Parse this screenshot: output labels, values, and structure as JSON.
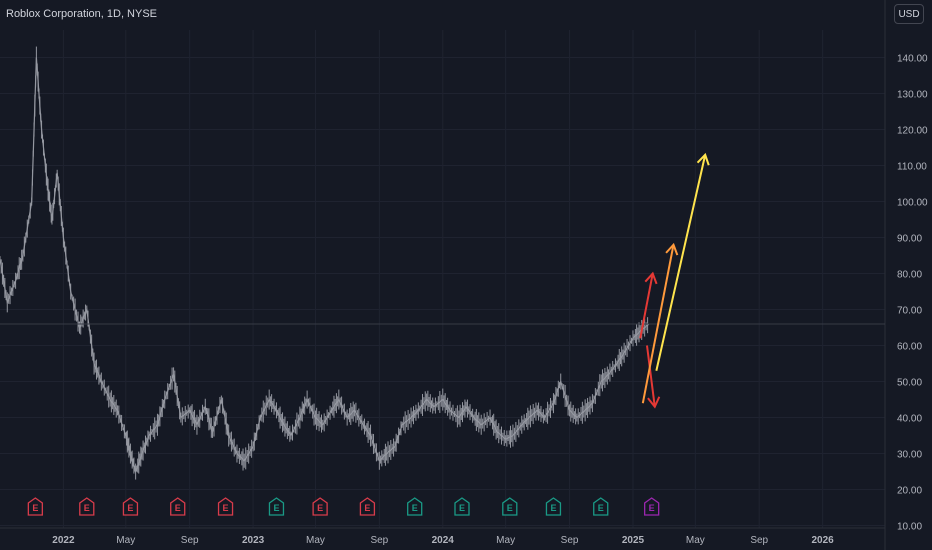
{
  "header": {
    "title": "Roblox Corporation, 1D, NYSE",
    "currency": "USD"
  },
  "colors": {
    "background": "#151924",
    "candles": "#9598a1",
    "grid": "#1f2330",
    "axis_text": "#b2b5be",
    "earnings_past": "#d83c4b",
    "earnings_future": "#1a9a86",
    "earnings_upcoming": "#9c27b0",
    "arrow_red": "#e53935",
    "arrow_orange": "#ff9a3c",
    "arrow_yellow": "#ffe44d"
  },
  "chart_data": {
    "type": "line",
    "title": "Roblox Corporation, 1D, NYSE",
    "xlabel": "",
    "ylabel": "",
    "ylim": [
      10,
      150
    ],
    "xlim": [
      "2021-09-01",
      "2026-05-01"
    ],
    "y_ticks": [
      "10.00",
      "20.00",
      "30.00",
      "40.00",
      "50.00",
      "60.00",
      "70.00",
      "80.00",
      "90.00",
      "100.00",
      "110.00",
      "120.00",
      "130.00",
      "140.00"
    ],
    "x_ticks": [
      {
        "label": "2022",
        "date": "2022-01-01"
      },
      {
        "label": "May",
        "date": "2022-05-01"
      },
      {
        "label": "Sep",
        "date": "2022-09-01"
      },
      {
        "label": "2023",
        "date": "2023-01-01"
      },
      {
        "label": "May",
        "date": "2023-05-01"
      },
      {
        "label": "Sep",
        "date": "2023-09-01"
      },
      {
        "label": "2024",
        "date": "2024-01-01"
      },
      {
        "label": "May",
        "date": "2024-05-01"
      },
      {
        "label": "Sep",
        "date": "2024-09-01"
      },
      {
        "label": "2025",
        "date": "2025-01-01"
      },
      {
        "label": "May",
        "date": "2025-05-01"
      },
      {
        "label": "Sep",
        "date": "2025-09-01"
      },
      {
        "label": "2026",
        "date": "2026-01-01"
      }
    ],
    "series": [
      {
        "x": [
          "2021-09-01",
          "2021-09-15",
          "2021-10-01",
          "2021-10-15",
          "2021-11-01",
          "2021-11-10",
          "2021-11-20",
          "2021-12-01",
          "2021-12-10",
          "2021-12-20",
          "2022-01-01",
          "2022-01-15",
          "2022-02-01",
          "2022-02-15",
          "2022-03-01",
          "2022-03-15",
          "2022-04-01",
          "2022-04-15",
          "2022-05-01",
          "2022-05-10",
          "2022-05-20",
          "2022-06-01",
          "2022-06-15",
          "2022-07-01",
          "2022-07-15",
          "2022-08-01",
          "2022-08-15",
          "2022-09-01",
          "2022-09-15",
          "2022-10-01",
          "2022-10-15",
          "2022-11-01",
          "2022-11-15",
          "2022-12-01",
          "2022-12-15",
          "2023-01-01",
          "2023-01-15",
          "2023-02-01",
          "2023-02-15",
          "2023-03-01",
          "2023-03-15",
          "2023-04-01",
          "2023-04-15",
          "2023-05-01",
          "2023-05-15",
          "2023-06-01",
          "2023-06-15",
          "2023-07-01",
          "2023-07-15",
          "2023-08-01",
          "2023-08-15",
          "2023-09-01",
          "2023-09-15",
          "2023-10-01",
          "2023-10-15",
          "2023-11-01",
          "2023-11-15",
          "2023-12-01",
          "2023-12-15",
          "2024-01-01",
          "2024-01-15",
          "2024-02-01",
          "2024-02-15",
          "2024-03-01",
          "2024-03-15",
          "2024-04-01",
          "2024-04-15",
          "2024-05-01",
          "2024-05-15",
          "2024-06-01",
          "2024-06-15",
          "2024-07-01",
          "2024-07-15",
          "2024-08-01",
          "2024-08-15",
          "2024-09-01",
          "2024-09-15",
          "2024-10-01",
          "2024-10-15",
          "2024-11-01",
          "2024-11-15",
          "2024-12-01",
          "2024-12-15",
          "2025-01-01",
          "2025-01-15",
          "2025-02-01"
        ],
        "values": [
          84,
          72,
          78,
          85,
          100,
          140,
          120,
          105,
          95,
          108,
          90,
          75,
          65,
          70,
          55,
          50,
          45,
          42,
          35,
          30,
          25,
          30,
          35,
          38,
          45,
          52,
          40,
          42,
          38,
          43,
          36,
          45,
          35,
          30,
          28,
          32,
          40,
          45,
          42,
          38,
          35,
          40,
          45,
          40,
          38,
          42,
          45,
          40,
          42,
          38,
          35,
          28,
          30,
          32,
          38,
          40,
          42,
          45,
          43,
          45,
          42,
          40,
          43,
          40,
          38,
          40,
          36,
          34,
          35,
          38,
          40,
          42,
          40,
          44,
          50,
          42,
          40,
          42,
          44,
          50,
          52,
          55,
          58,
          62,
          64,
          66
        ]
      }
    ],
    "earnings_events": [
      {
        "label": "E",
        "date": "2021-11-08",
        "kind": "past"
      },
      {
        "label": "E",
        "date": "2022-02-15",
        "kind": "past"
      },
      {
        "label": "E",
        "date": "2022-05-10",
        "kind": "past"
      },
      {
        "label": "E",
        "date": "2022-08-09",
        "kind": "past"
      },
      {
        "label": "E",
        "date": "2022-11-09",
        "kind": "past"
      },
      {
        "label": "E",
        "date": "2023-02-15",
        "kind": "future"
      },
      {
        "label": "E",
        "date": "2023-05-10",
        "kind": "past"
      },
      {
        "label": "E",
        "date": "2023-08-09",
        "kind": "past"
      },
      {
        "label": "E",
        "date": "2023-11-08",
        "kind": "future"
      },
      {
        "label": "E",
        "date": "2024-02-07",
        "kind": "future"
      },
      {
        "label": "E",
        "date": "2024-05-09",
        "kind": "future"
      },
      {
        "label": "E",
        "date": "2024-08-01",
        "kind": "future"
      },
      {
        "label": "E",
        "date": "2024-10-31",
        "kind": "future"
      },
      {
        "label": "E",
        "date": "2025-02-06",
        "kind": "upcoming"
      }
    ],
    "annotations": [
      {
        "type": "arrow",
        "color": "red",
        "from": {
          "date": "2025-01-15",
          "value": 62
        },
        "to": {
          "date": "2025-02-08",
          "value": 80
        }
      },
      {
        "type": "arrow",
        "color": "red",
        "from": {
          "date": "2025-01-28",
          "value": 60
        },
        "to": {
          "date": "2025-02-12",
          "value": 43
        }
      },
      {
        "type": "arrow",
        "color": "orange",
        "from": {
          "date": "2025-01-20",
          "value": 44
        },
        "to": {
          "date": "2025-03-20",
          "value": 88
        }
      },
      {
        "type": "arrow",
        "color": "yellow",
        "from": {
          "date": "2025-02-15",
          "value": 53
        },
        "to": {
          "date": "2025-05-20",
          "value": 113
        }
      }
    ]
  }
}
